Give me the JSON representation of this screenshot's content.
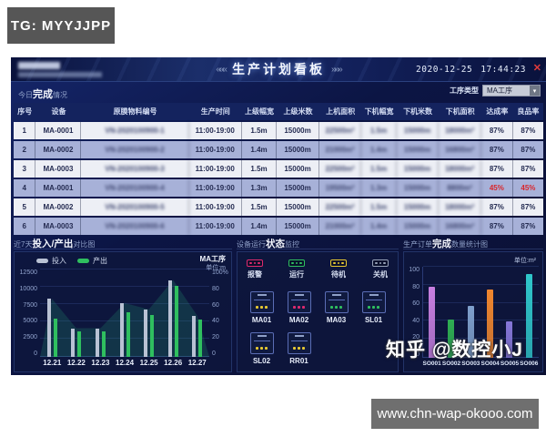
{
  "overlays": {
    "tg_watermark": "TG: MYYJJPP",
    "zhihu_watermark": "知乎 @数控小J",
    "site_watermark": "www.chn-wap-okooo.com"
  },
  "header": {
    "title": "生产计划看板",
    "left_chevrons": "«««",
    "right_chevrons": "»»»",
    "date": "2020-12-25",
    "time": "17:44:23",
    "close_label": "✕"
  },
  "toolbar": {
    "section_title": {
      "prefix": "今日",
      "strong": "完成",
      "suffix": "情况"
    },
    "filter_label": "工序类型",
    "filter_value": "MA工序",
    "dropdown_arrow": "▾"
  },
  "table": {
    "columns": [
      "序号",
      "设备",
      "原膜物料编号",
      "生产时间",
      "上级幅宽",
      "上级米数",
      "上机面积",
      "下机幅宽",
      "下机米数",
      "下机面积",
      "达成率",
      "良品率"
    ],
    "blurred_columns": [
      2,
      6,
      7,
      8,
      9
    ],
    "alert_rows": [
      3
    ],
    "rows": [
      [
        "1",
        "MA-0001",
        "VN-2020100900-1",
        "11:00-19:00",
        "1.5m",
        "15000m",
        "22500m²",
        "1.5m",
        "15000m",
        "18000m²",
        "87%",
        "87%"
      ],
      [
        "2",
        "MA-0002",
        "VN-2020100900-2",
        "11:00-19:00",
        "1.4m",
        "15000m",
        "21000m²",
        "1.4m",
        "15000m",
        "16800m²",
        "87%",
        "87%"
      ],
      [
        "3",
        "MA-0003",
        "VN-2020100900-3",
        "11:00-19:00",
        "1.5m",
        "15000m",
        "22500m²",
        "1.5m",
        "15000m",
        "18000m²",
        "87%",
        "87%"
      ],
      [
        "4",
        "MA-0001",
        "VN-2020100900-4",
        "11:00-19:00",
        "1.3m",
        "15000m",
        "19500m²",
        "1.3m",
        "15000m",
        "8800m²",
        "45%",
        "45%"
      ],
      [
        "5",
        "MA-0002",
        "VN-2020100900-5",
        "11:00-19:00",
        "1.5m",
        "15000m",
        "22500m²",
        "1.5m",
        "15000m",
        "18000m²",
        "87%",
        "87%"
      ],
      [
        "6",
        "MA-0003",
        "VN-2020100900-6",
        "11:00-19:00",
        "1.4m",
        "15000m",
        "21000m²",
        "1.4m",
        "15000m",
        "16800m²",
        "87%",
        "87%"
      ]
    ]
  },
  "chart_data": [
    {
      "type": "bar",
      "panel_title": {
        "prefix": "近7天",
        "strong": "投入/产出",
        "suffix": "对比图"
      },
      "legend_position": "top-left",
      "annotation_line1": "MA工序",
      "annotation_line2": "单位:m",
      "categories": [
        "12.21",
        "12.22",
        "12.23",
        "12.24",
        "12.25",
        "12.26",
        "12.27"
      ],
      "series": [
        {
          "name": "投入",
          "color": "#b9c2d4",
          "values": [
            8300,
            4100,
            4100,
            7700,
            6800,
            11000,
            5900
          ]
        },
        {
          "name": "产出",
          "color": "#2fbf5f",
          "values": [
            5500,
            3600,
            3600,
            6400,
            6000,
            10200,
            5400
          ]
        }
      ],
      "ylim": [
        0,
        12500
      ],
      "yticks": [
        12500,
        10000,
        7500,
        5000,
        2500,
        0
      ],
      "right_ticks": [
        "100%",
        "80",
        "60",
        "40",
        "20",
        "0"
      ],
      "grid": true
    },
    {
      "type": "bar",
      "panel_title": {
        "prefix": "生产订单",
        "strong": "完成",
        "suffix": "数量统计图"
      },
      "unit": "单位:m²",
      "categories": [
        "SO001",
        "SO002",
        "SO003",
        "SO004",
        "SO005",
        "SO006"
      ],
      "values": [
        78,
        42,
        57,
        75,
        40,
        92
      ],
      "colors": [
        "#c77fe0",
        "#2faf52",
        "#7fa0cc",
        "#f0862e",
        "#8677d8",
        "#2fc7cb"
      ],
      "ylim": [
        0,
        100
      ],
      "yticks": [
        100,
        80,
        60,
        40,
        20,
        0
      ],
      "grid": true
    }
  ],
  "status_panel": {
    "panel_title": {
      "prefix": "设备运行",
      "strong": "状态",
      "suffix": "监控"
    },
    "legend": [
      {
        "label": "报警",
        "color": "#e02a6e"
      },
      {
        "label": "运行",
        "color": "#2fbf5f"
      },
      {
        "label": "待机",
        "color": "#e6c832"
      },
      {
        "label": "关机",
        "color": "#98a2b8"
      }
    ],
    "devices": [
      {
        "name": "MA01",
        "status": "待机"
      },
      {
        "name": "MA02",
        "status": "报警"
      },
      {
        "name": "MA03",
        "status": "运行"
      },
      {
        "name": "SL01",
        "status": "运行"
      },
      {
        "name": "SL02",
        "status": "待机"
      },
      {
        "name": "RR01",
        "status": "待机"
      }
    ]
  }
}
